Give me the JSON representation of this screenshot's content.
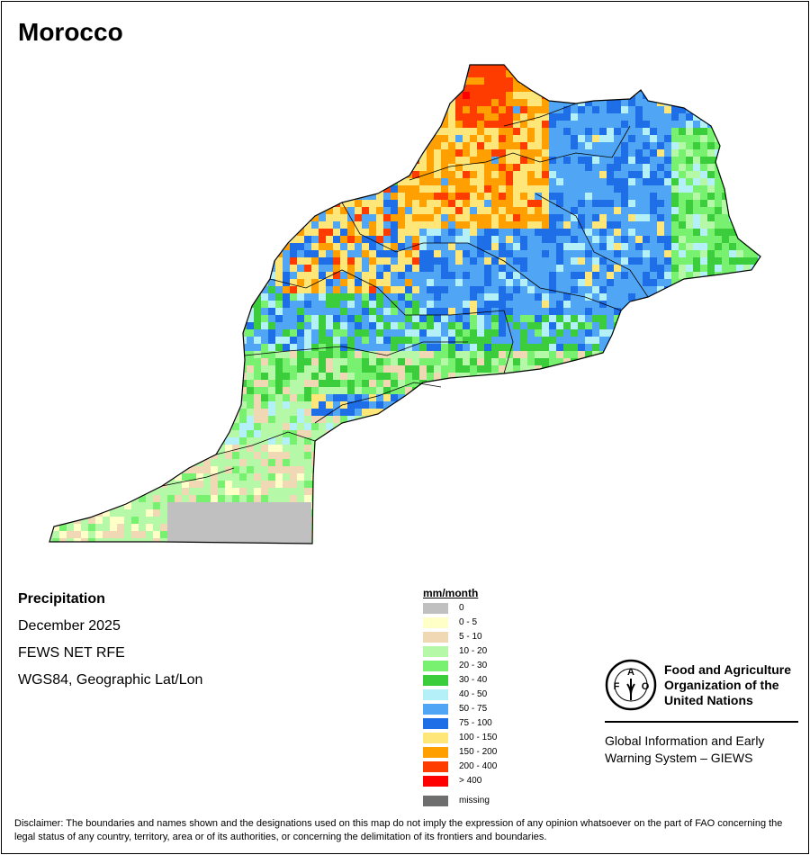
{
  "title": "Morocco",
  "info": {
    "variable": "Precipitation",
    "period": "December 2025",
    "source": "FEWS NET RFE",
    "projection": "WGS84, Geographic Lat/Lon"
  },
  "legend": {
    "title": "mm/month",
    "items": [
      {
        "label": "0",
        "color": "#c0c0c0"
      },
      {
        "label": "0 - 5",
        "color": "#ffffc8"
      },
      {
        "label": "5 - 10",
        "color": "#f0d8b4"
      },
      {
        "label": "10 - 20",
        "color": "#b4f8a8"
      },
      {
        "label": "20 - 30",
        "color": "#78f070"
      },
      {
        "label": "30 - 40",
        "color": "#3ccd3c"
      },
      {
        "label": "40 - 50",
        "color": "#b4f0f8"
      },
      {
        "label": "50 - 75",
        "color": "#50a5f5"
      },
      {
        "label": "75 - 100",
        "color": "#1e6ee8"
      },
      {
        "label": "100 - 150",
        "color": "#ffe678"
      },
      {
        "label": "150 - 200",
        "color": "#ffa000"
      },
      {
        "label": "200 - 400",
        "color": "#ff3c00"
      },
      {
        "label": "> 400",
        "color": "#ff0000"
      },
      {
        "label": "missing",
        "color": "#6e6e6e"
      }
    ]
  },
  "logo": {
    "fao_letters": "F A O",
    "motto": "FIAT PANIS",
    "org_lines": [
      "Food and Agriculture",
      "Organization of the",
      "United Nations"
    ],
    "system_lines": [
      "Global Information and Early",
      "Warning System – GIEWS"
    ]
  },
  "disclaimer": "Disclaimer: The boundaries and names shown and the designations used on this map do not imply the expression of any opinion whatsoever on the part of FAO concerning the legal status of any country, territory, area or of its authorities, or concerning the delimitation of its frontiers and boundaries."
}
